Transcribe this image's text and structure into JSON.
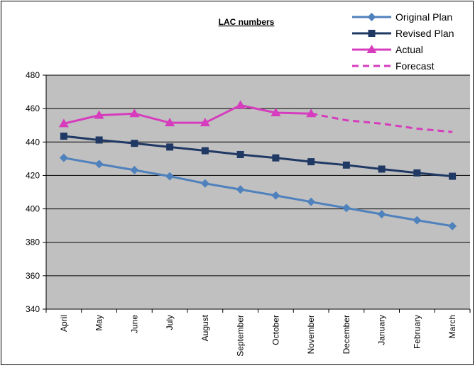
{
  "chart_data": {
    "type": "line",
    "title": "LAC numbers",
    "xlabel": "",
    "ylabel": "",
    "ylim": [
      340,
      480
    ],
    "yticks": [
      "340",
      "360",
      "380",
      "400",
      "420",
      "440",
      "460",
      "480"
    ],
    "categories": [
      "April",
      "May",
      "June",
      "July",
      "August",
      "September",
      "October",
      "November",
      "December",
      "January",
      "February",
      "March"
    ],
    "grid": true,
    "legend_position": "top-right",
    "series": [
      {
        "name": "Original Plan",
        "color": "#4f81bd",
        "marker": "diamond",
        "style": "solid",
        "values": [
          430.5,
          426.8,
          423.2,
          419.5,
          415.2,
          411.6,
          408.0,
          404.2,
          400.5,
          396.8,
          393.2,
          389.7
        ]
      },
      {
        "name": "Revised Plan",
        "color": "#1f3864",
        "marker": "square",
        "style": "solid",
        "values": [
          443.5,
          441.2,
          439.2,
          437.0,
          434.8,
          432.5,
          430.5,
          428.2,
          426.2,
          423.8,
          421.5,
          419.5
        ]
      },
      {
        "name": "Actual",
        "color": "#d63cbd",
        "marker": "triangle",
        "style": "solid",
        "values": [
          451,
          456,
          457,
          451.5,
          451.5,
          462,
          457.5,
          457,
          null,
          null,
          null,
          null
        ]
      },
      {
        "name": "Forecast",
        "color": "#d63cbd",
        "marker": "none",
        "style": "dashed",
        "values": [
          null,
          null,
          null,
          null,
          null,
          null,
          null,
          457,
          453,
          451,
          448,
          446
        ]
      }
    ]
  }
}
